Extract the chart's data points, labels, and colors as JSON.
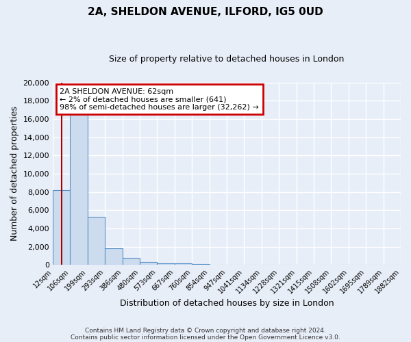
{
  "title": "2A, SHELDON AVENUE, ILFORD, IG5 0UD",
  "subtitle": "Size of property relative to detached houses in London",
  "xlabel": "Distribution of detached houses by size in London",
  "ylabel": "Number of detached properties",
  "bar_values": [
    8200,
    16600,
    5300,
    1850,
    800,
    300,
    200,
    150,
    100,
    0,
    0,
    0,
    0,
    0,
    0,
    0,
    0,
    0,
    0,
    0
  ],
  "bar_labels": [
    "12sqm",
    "106sqm",
    "199sqm",
    "293sqm",
    "386sqm",
    "480sqm",
    "573sqm",
    "667sqm",
    "760sqm",
    "854sqm",
    "947sqm",
    "1041sqm",
    "1134sqm",
    "1228sqm",
    "1321sqm",
    "1415sqm",
    "1508sqm",
    "1602sqm",
    "1695sqm",
    "1789sqm",
    "1882sqm"
  ],
  "bar_color": "#ccdcee",
  "bar_edge_color": "#5590c8",
  "bg_color": "#e8eef8",
  "grid_color": "#ffffff",
  "vline_color": "#aa0000",
  "annotation_title": "2A SHELDON AVENUE: 62sqm",
  "annotation_line1": "← 2% of detached houses are smaller (641)",
  "annotation_line2": "98% of semi-detached houses are larger (32,262) →",
  "annotation_box_color": "#ffffff",
  "annotation_box_edge": "#cc0000",
  "ylim": [
    0,
    20000
  ],
  "yticks": [
    0,
    2000,
    4000,
    6000,
    8000,
    10000,
    12000,
    14000,
    16000,
    18000,
    20000
  ],
  "footer_line1": "Contains HM Land Registry data © Crown copyright and database right 2024.",
  "footer_line2": "Contains public sector information licensed under the Open Government Licence v3.0.",
  "n_bars": 20
}
